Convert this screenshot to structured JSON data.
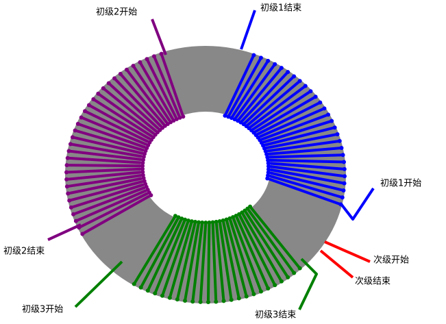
{
  "labels": {
    "primary2_start": "初级2开始",
    "primary1_end": "初级1结束",
    "primary1_start": "初级1开始",
    "secondary_start": "次级开始",
    "secondary_end": "次级结束",
    "primary2_end": "初级2结束",
    "primary3_start": "初级3开始",
    "primary3_end": "初级3结束"
  }
}
